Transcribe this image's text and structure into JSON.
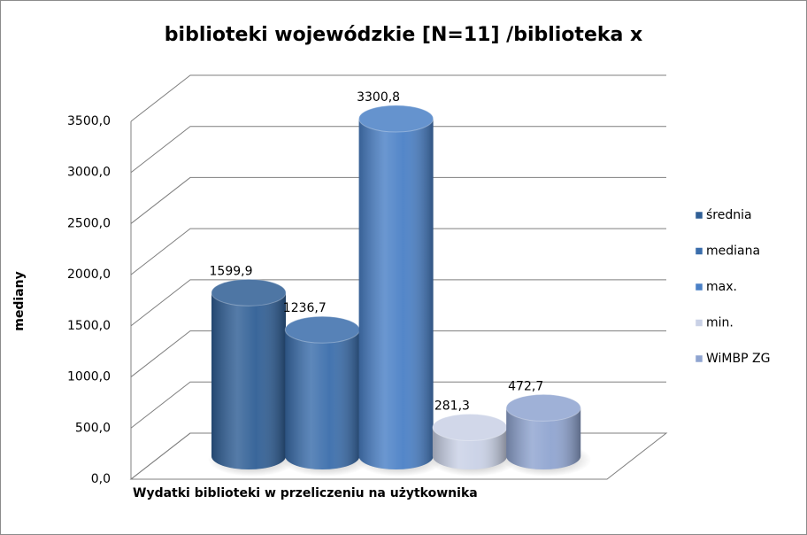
{
  "chart_data": {
    "type": "bar3d",
    "title": "biblioteki wojewódzkie  [N=11] /biblioteka x",
    "y_label": "mediany",
    "x_label": "Wydatki biblioteki w przeliczeniu na użytkownika",
    "series": [
      {
        "name": "średnia",
        "color": "#2f5e95",
        "values": [
          1599.9
        ],
        "value_labels": [
          "1599,9"
        ]
      },
      {
        "name": "mediana",
        "color": "#3a6dab",
        "values": [
          1236.7
        ],
        "value_labels": [
          "1236,7"
        ]
      },
      {
        "name": "max.",
        "color": "#4a80c6",
        "values": [
          3300.8
        ],
        "value_labels": [
          "3300,8"
        ]
      },
      {
        "name": "min.",
        "color": "#c9d1e6",
        "values": [
          281.3
        ],
        "value_labels": [
          "281,3"
        ]
      },
      {
        "name": "WiMBP ZG",
        "color": "#8fa4d0",
        "values": [
          472.7
        ],
        "value_labels": [
          "472,7"
        ]
      }
    ],
    "ylim": [
      0,
      3500
    ],
    "yticks": [
      {
        "value": 0,
        "label": "0,0"
      },
      {
        "value": 500,
        "label": "500,0"
      },
      {
        "value": 1000,
        "label": "1000,0"
      },
      {
        "value": 1500,
        "label": "1500,0"
      },
      {
        "value": 2000,
        "label": "2000,0"
      },
      {
        "value": 2500,
        "label": "2500,0"
      },
      {
        "value": 3000,
        "label": "3000,0"
      },
      {
        "value": 3500,
        "label": "3500,0"
      }
    ],
    "grid": true,
    "legend": "right"
  }
}
